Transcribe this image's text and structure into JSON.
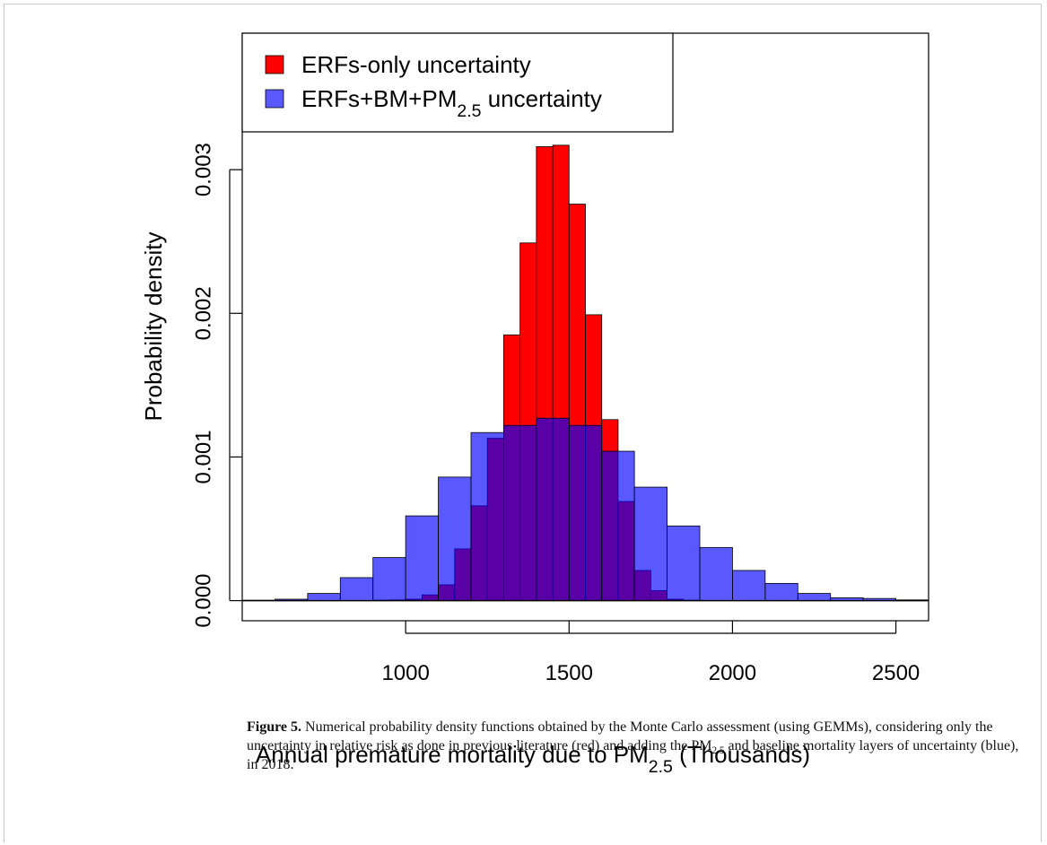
{
  "chart_data": {
    "type": "histogram",
    "x_label": "Annual premature mortality due to PM2.5 (Thousands)",
    "y_label": "Probability density",
    "xlim": [
      500,
      2600
    ],
    "ylim": [
      -0.00014,
      0.00395
    ],
    "xticks": [
      1000,
      1500,
      2000,
      2500
    ],
    "yticks": [
      {
        "value": 0,
        "label": "0.000"
      },
      {
        "value": 0.001,
        "label": "0.001"
      },
      {
        "value": 0.002,
        "label": "0.002"
      },
      {
        "value": 0.003,
        "label": "0.003"
      }
    ],
    "legend": "top-left",
    "series": [
      {
        "name": "ERFs-only uncertainty",
        "color": "#ff0000",
        "alpha": 1,
        "bins": [
          900,
          950,
          1000,
          1050,
          1100,
          1150,
          1200,
          1250,
          1300,
          1350,
          1400,
          1450,
          1500,
          1550,
          1600,
          1650,
          1700,
          1750,
          1800,
          1850,
          1900
        ],
        "values": [
          3e-06,
          5e-06,
          1e-05,
          4e-05,
          0.00011,
          0.00036,
          0.00066,
          0.00113,
          0.00185,
          0.00249,
          0.00316,
          0.00317,
          0.00276,
          0.00199,
          0.00126,
          0.00069,
          0.00021,
          7e-05,
          1e-05,
          3e-06
        ]
      },
      {
        "name": "ERFs+BM+PM2.5 uncertainty",
        "color": "#0000ff",
        "alpha": 0.65,
        "bins": [
          500,
          600,
          700,
          800,
          900,
          1000,
          1100,
          1200,
          1300,
          1400,
          1500,
          1600,
          1700,
          1800,
          1900,
          2000,
          2100,
          2200,
          2300,
          2400,
          2500,
          2600
        ],
        "values": [
          3e-06,
          1e-05,
          5e-05,
          0.00016,
          0.0003,
          0.00059,
          0.00086,
          0.00117,
          0.00122,
          0.00127,
          0.00122,
          0.00104,
          0.00079,
          0.00052,
          0.00037,
          0.00021,
          0.00012,
          5e-05,
          2e-05,
          1.5e-05,
          5e-06
        ]
      }
    ]
  },
  "caption": {
    "label": "Figure 5.",
    "text": "Numerical probability density functions obtained by the Monte Carlo assessment (using GEMMs), considering only the uncertainty in relative risk as done in previous literature (red) and adding the PM2.5 and baseline mortality layers of uncertainty (blue), in 2018."
  }
}
